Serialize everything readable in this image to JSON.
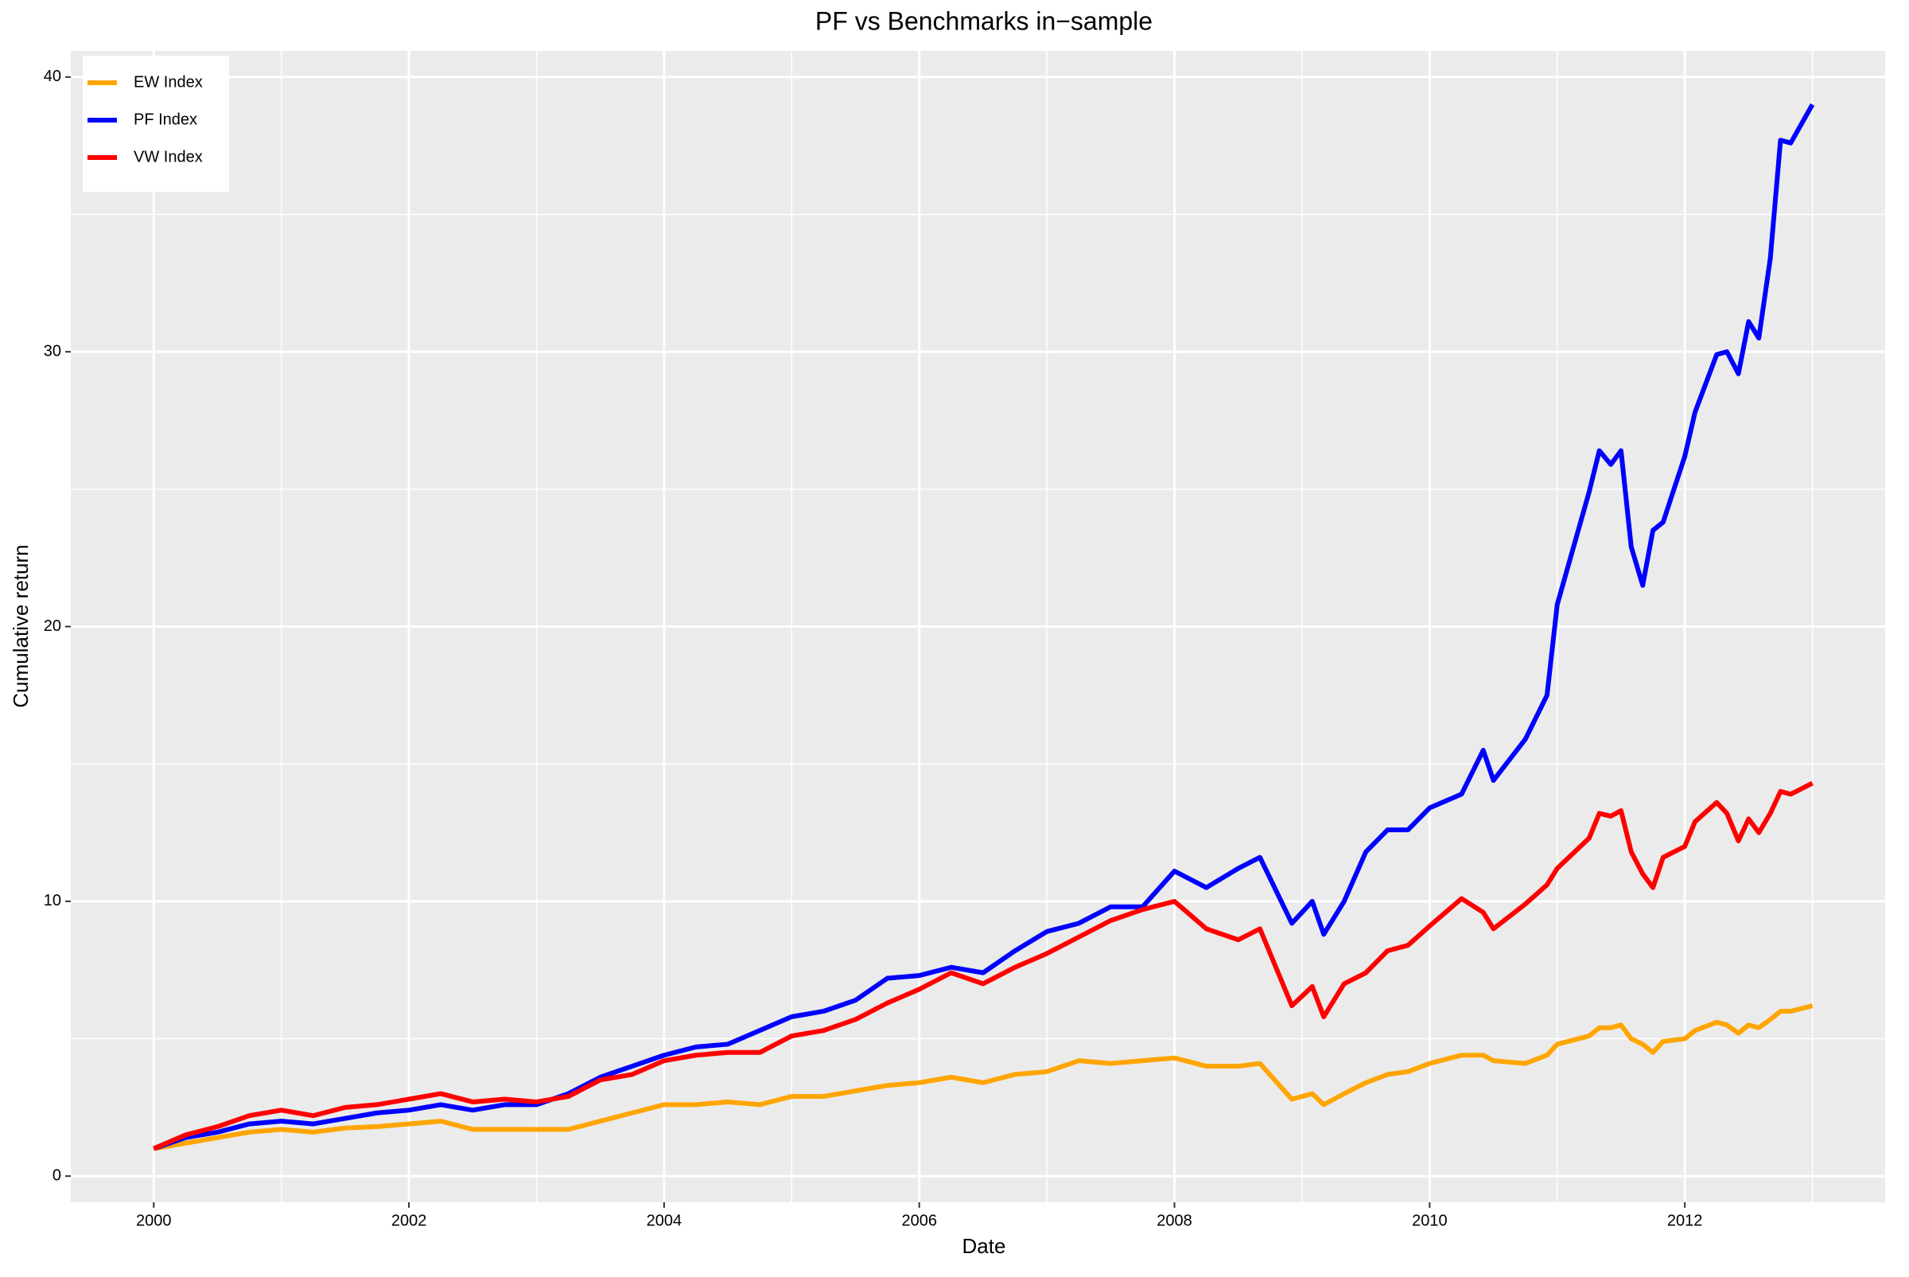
{
  "chart_data": {
    "type": "line",
    "title": "PF vs Benchmarks in−sample",
    "x_label": "Date",
    "y_label": "Cumulative return",
    "x": [
      2000,
      2000.25,
      2000.5,
      2000.75,
      2001,
      2001.25,
      2001.5,
      2001.75,
      2002,
      2002.25,
      2002.5,
      2002.75,
      2003,
      2003.25,
      2003.5,
      2003.75,
      2004,
      2004.25,
      2004.5,
      2004.75,
      2005,
      2005.25,
      2005.5,
      2005.75,
      2006,
      2006.25,
      2006.5,
      2006.75,
      2007,
      2007.25,
      2007.5,
      2007.75,
      2008,
      2008.25,
      2008.5,
      2008.67,
      2008.92,
      2009.08,
      2009.17,
      2009.33,
      2009.5,
      2009.67,
      2009.83,
      2010,
      2010.25,
      2010.42,
      2010.5,
      2010.75,
      2010.92,
      2011,
      2011.25,
      2011.33,
      2011.42,
      2011.5,
      2011.58,
      2011.67,
      2011.75,
      2011.83,
      2012,
      2012.08,
      2012.25,
      2012.33,
      2012.42,
      2012.5,
      2012.58,
      2012.67,
      2012.75,
      2012.83,
      2013
    ],
    "series": [
      {
        "name": "EW Index",
        "color": "#FFA500",
        "values": [
          1.0,
          1.2,
          1.4,
          1.6,
          1.7,
          1.6,
          1.75,
          1.8,
          1.9,
          2.0,
          1.7,
          1.7,
          1.7,
          1.7,
          2.0,
          2.3,
          2.6,
          2.6,
          2.7,
          2.6,
          2.9,
          2.9,
          3.1,
          3.3,
          3.4,
          3.6,
          3.4,
          3.7,
          3.8,
          4.2,
          4.1,
          4.2,
          4.3,
          4.0,
          4.0,
          4.1,
          2.8,
          3.0,
          2.6,
          3.0,
          3.4,
          3.7,
          3.8,
          4.1,
          4.4,
          4.4,
          4.2,
          4.1,
          4.4,
          4.8,
          5.1,
          5.4,
          5.4,
          5.5,
          5.0,
          4.8,
          4.5,
          4.9,
          5.0,
          5.3,
          5.6,
          5.5,
          5.2,
          5.5,
          5.4,
          5.7,
          6.0,
          6.0,
          6.2
        ]
      },
      {
        "name": "PF Index",
        "color": "#0000FF",
        "values": [
          1.0,
          1.4,
          1.6,
          1.9,
          2.0,
          1.9,
          2.1,
          2.3,
          2.4,
          2.6,
          2.4,
          2.6,
          2.6,
          3.0,
          3.6,
          4.0,
          4.4,
          4.7,
          4.8,
          5.3,
          5.8,
          6.0,
          6.4,
          7.2,
          7.3,
          7.6,
          7.4,
          8.2,
          8.9,
          9.2,
          9.8,
          9.8,
          11.1,
          10.5,
          11.2,
          11.6,
          9.2,
          10.0,
          8.8,
          10.0,
          11.8,
          12.6,
          12.6,
          13.4,
          13.9,
          15.5,
          14.4,
          15.9,
          17.5,
          20.8,
          24.9,
          26.4,
          25.9,
          26.4,
          22.9,
          21.5,
          23.5,
          23.8,
          26.2,
          27.8,
          29.9,
          30.0,
          29.2,
          31.1,
          30.5,
          33.4,
          37.7,
          37.6,
          39.0
        ]
      },
      {
        "name": "VW Index",
        "color": "#FF0000",
        "values": [
          1.0,
          1.5,
          1.8,
          2.2,
          2.4,
          2.2,
          2.5,
          2.6,
          2.8,
          3.0,
          2.7,
          2.8,
          2.7,
          2.9,
          3.5,
          3.7,
          4.2,
          4.4,
          4.5,
          4.5,
          5.1,
          5.3,
          5.7,
          6.3,
          6.8,
          7.4,
          7.0,
          7.6,
          8.1,
          8.7,
          9.3,
          9.7,
          10.0,
          9.0,
          8.6,
          9.0,
          6.2,
          6.9,
          5.8,
          7.0,
          7.4,
          8.2,
          8.4,
          9.1,
          10.1,
          9.6,
          9.0,
          9.9,
          10.6,
          11.2,
          12.3,
          13.2,
          13.1,
          13.3,
          11.8,
          11.0,
          10.5,
          11.6,
          12.0,
          12.9,
          13.6,
          13.2,
          12.2,
          13.0,
          12.5,
          13.2,
          14.0,
          13.9,
          14.3
        ]
      }
    ],
    "xlim": [
      1999.35,
      2013.57
    ],
    "xticks": [
      2000,
      2002,
      2004,
      2006,
      2008,
      2010,
      2012
    ],
    "x_minor_ticks": [
      2001,
      2003,
      2005,
      2007,
      2009,
      2011,
      2013
    ],
    "ylim": [
      -0.95,
      40.95
    ],
    "yticks": [
      0,
      10,
      20,
      30,
      40
    ],
    "y_minor_ticks": [
      5,
      15,
      25,
      35
    ],
    "grid": true,
    "legend_position": "top-left"
  }
}
